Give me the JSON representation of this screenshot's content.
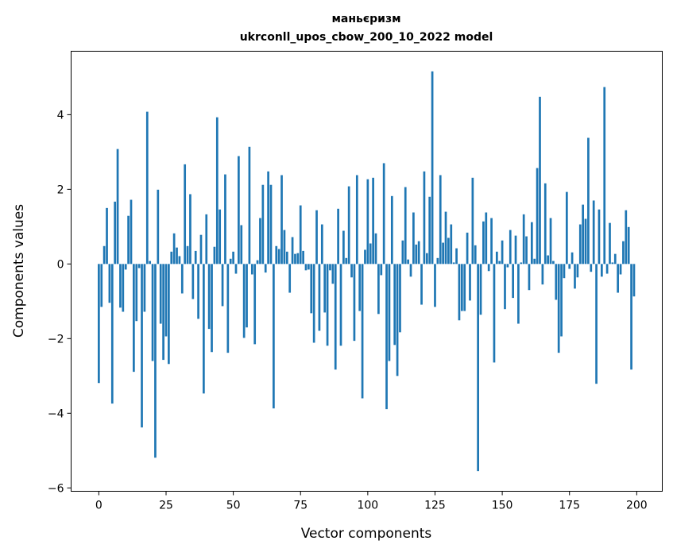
{
  "chart_data": {
    "type": "bar",
    "title": "маньєризм",
    "subtitle": "ukrconll_upos_cbow_200_10_2022 model",
    "xlabel": "Vector components",
    "ylabel": "Components values",
    "xlim": [
      -10.3,
      209.5
    ],
    "ylim": [
      -6.09,
      5.7
    ],
    "xticks": [
      0,
      25,
      50,
      75,
      100,
      125,
      150,
      175,
      200
    ],
    "yticks": [
      -6,
      -4,
      -2,
      0,
      2,
      4
    ],
    "xtick_labels": [
      "0",
      "25",
      "50",
      "75",
      "100",
      "125",
      "150",
      "175",
      "200"
    ],
    "ytick_labels": [
      "−6",
      "−4",
      "−2",
      "0",
      "2",
      "4"
    ],
    "grid": false,
    "bar_color": "#1f77b4",
    "values": [
      -3.19,
      -1.15,
      0.48,
      1.5,
      -1.04,
      -3.74,
      1.67,
      3.08,
      -1.17,
      -1.28,
      -0.15,
      1.29,
      1.72,
      -2.89,
      -1.53,
      -0.11,
      -4.38,
      -1.28,
      4.08,
      0.08,
      -2.6,
      -5.19,
      1.99,
      -1.6,
      -2.57,
      -1.94,
      -2.68,
      0.33,
      0.82,
      0.44,
      0.21,
      -0.79,
      2.67,
      0.48,
      1.87,
      -0.94,
      0.35,
      -1.47,
      0.78,
      -3.47,
      1.33,
      -1.74,
      -2.36,
      0.46,
      3.93,
      1.46,
      -1.13,
      2.4,
      -2.38,
      0.14,
      0.33,
      -0.26,
      2.89,
      1.04,
      -1.98,
      -1.7,
      3.14,
      -0.28,
      -2.15,
      0.1,
      1.23,
      2.12,
      -0.23,
      2.48,
      2.12,
      -3.87,
      0.48,
      0.4,
      2.38,
      0.91,
      0.33,
      -0.77,
      0.72,
      0.27,
      0.29,
      1.57,
      0.35,
      -0.17,
      -0.15,
      -1.32,
      -2.11,
      1.44,
      -1.79,
      1.06,
      -1.3,
      -2.19,
      -0.17,
      -0.53,
      -2.83,
      1.48,
      -2.19,
      0.89,
      0.16,
      2.08,
      -0.36,
      -2.06,
      2.38,
      -1.26,
      -3.6,
      0.38,
      2.27,
      0.55,
      2.31,
      0.82,
      -1.34,
      -0.3,
      2.7,
      -3.89,
      -2.6,
      1.82,
      -2.17,
      -3.0,
      -1.83,
      0.63,
      2.06,
      0.12,
      -0.34,
      1.38,
      0.52,
      0.61,
      -1.09,
      2.48,
      0.29,
      1.8,
      5.16,
      -1.15,
      0.16,
      2.38,
      0.57,
      1.4,
      0.7,
      1.06,
      0.04,
      0.42,
      -1.51,
      -1.26,
      -1.26,
      0.84,
      -0.98,
      2.31,
      0.5,
      -5.55,
      -1.36,
      1.14,
      1.38,
      -0.19,
      1.23,
      -2.64,
      0.33,
      0.08,
      0.63,
      -1.21,
      -0.09,
      0.91,
      -0.91,
      0.76,
      -1.6,
      0.04,
      1.33,
      0.74,
      -0.7,
      1.12,
      0.14,
      2.57,
      4.48,
      -0.55,
      2.16,
      0.23,
      1.23,
      0.08,
      -0.96,
      -2.38,
      -1.94,
      -0.38,
      1.93,
      -0.13,
      0.31,
      -0.66,
      -0.36,
      1.06,
      1.59,
      1.21,
      3.38,
      -0.21,
      1.7,
      -3.21,
      1.46,
      -0.34,
      4.74,
      -0.26,
      1.1,
      0.04,
      0.27,
      -0.77,
      -0.28,
      0.61,
      1.44,
      0.99,
      -2.83,
      -0.87
    ]
  }
}
